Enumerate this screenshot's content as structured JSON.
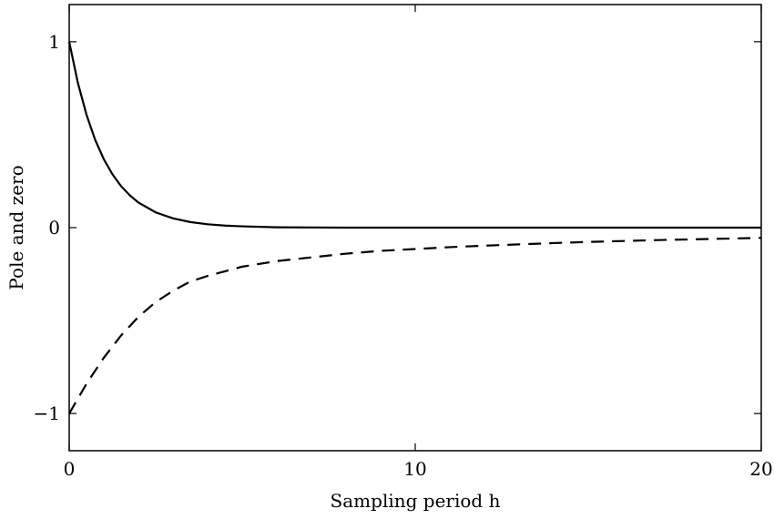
{
  "chart_data": {
    "type": "line",
    "title": "",
    "xlabel": "Sampling period h",
    "ylabel": "Pole and zero",
    "xlim": [
      0,
      20
    ],
    "ylim": [
      -1.2,
      1.2
    ],
    "xticks": [
      0,
      10,
      20
    ],
    "yticks": [
      -1,
      0,
      1
    ],
    "grid": false,
    "legend": "none",
    "series": [
      {
        "style": "solid",
        "color": "#000000",
        "x": [
          0,
          0.25,
          0.5,
          0.75,
          1,
          1.25,
          1.5,
          1.75,
          2,
          2.5,
          3,
          3.5,
          4,
          4.5,
          5,
          6,
          7,
          8,
          10,
          12,
          14,
          16,
          18,
          20
        ],
        "y": [
          1.0,
          0.779,
          0.607,
          0.472,
          0.368,
          0.287,
          0.223,
          0.174,
          0.135,
          0.082,
          0.05,
          0.03,
          0.018,
          0.011,
          0.007,
          0.002,
          0.001,
          0.0,
          0.0,
          0.0,
          0.0,
          0.0,
          0.0,
          0.0
        ]
      },
      {
        "style": "dashed",
        "color": "#000000",
        "x": [
          0,
          0.5,
          1,
          1.5,
          2,
          2.5,
          3,
          3.5,
          4,
          5,
          6,
          7,
          8,
          9,
          10,
          11,
          12,
          13,
          14,
          15,
          16,
          17,
          18,
          19,
          20
        ],
        "y": [
          -1.0,
          -0.84,
          -0.7,
          -0.58,
          -0.48,
          -0.4,
          -0.34,
          -0.29,
          -0.26,
          -0.21,
          -0.18,
          -0.16,
          -0.14,
          -0.125,
          -0.115,
          -0.105,
          -0.097,
          -0.09,
          -0.083,
          -0.077,
          -0.072,
          -0.067,
          -0.063,
          -0.059,
          -0.055
        ]
      }
    ]
  }
}
